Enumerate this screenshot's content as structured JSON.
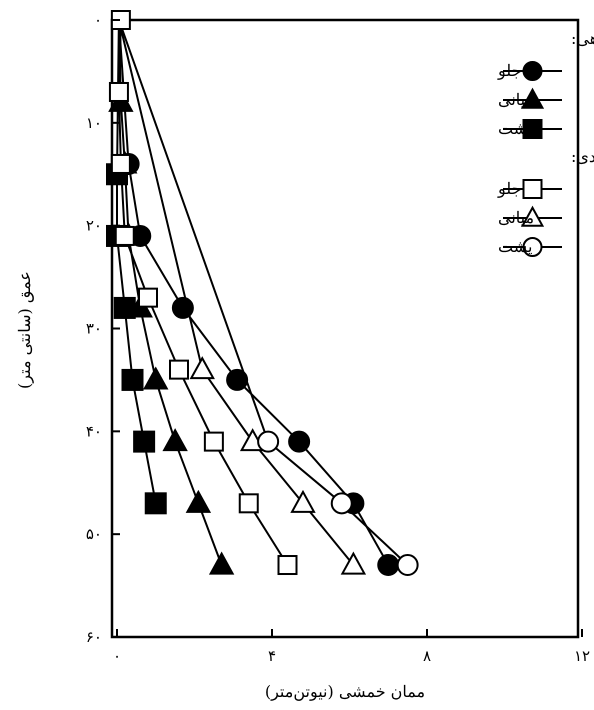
{
  "chart_data": {
    "type": "line",
    "orientation": "inverted-y",
    "xlabel": "ممان خمشی (نیوتن‌متر)",
    "ylabel": "عمق (سانتی متر)",
    "xlim": [
      0,
      12
    ],
    "ylim": [
      0,
      60
    ],
    "y_inverted": true,
    "x_ticks": [
      {
        "value": 0,
        "label": "۰"
      },
      {
        "value": 4,
        "label": "۴"
      },
      {
        "value": 8,
        "label": "۸"
      },
      {
        "value": 12,
        "label": "۱۲"
      }
    ],
    "y_ticks": [
      {
        "value": 0,
        "label": "۰"
      },
      {
        "value": 10,
        "label": "۱۰"
      },
      {
        "value": 20,
        "label": "۲۰"
      },
      {
        "value": 30,
        "label": "۳۰"
      },
      {
        "value": 40,
        "label": "۴۰"
      },
      {
        "value": 50,
        "label": "۵۰"
      },
      {
        "value": 60,
        "label": "۶۰"
      }
    ],
    "grid": false,
    "legend_position": "top-right",
    "legend_groups": [
      {
        "title": "آزمایشگاهی:",
        "series_indices": [
          0,
          1,
          2
        ]
      },
      {
        "title": "عددی:",
        "series_indices": [
          3,
          4,
          5
        ]
      }
    ],
    "series": [
      {
        "name": "جلو",
        "group": "آزمایشگاهی",
        "marker": "circle",
        "fill": "filled",
        "points": [
          [
            0.3,
            14
          ],
          [
            0.6,
            21
          ],
          [
            1.7,
            28
          ],
          [
            3.1,
            35
          ],
          [
            4.7,
            41
          ],
          [
            6.1,
            47
          ],
          [
            7.0,
            53
          ]
        ]
      },
      {
        "name": "میانی",
        "group": "آزمایشگاهی",
        "marker": "triangle",
        "fill": "filled",
        "points": [
          [
            0.1,
            8
          ],
          [
            0.2,
            14
          ],
          [
            0.3,
            21
          ],
          [
            0.6,
            28
          ],
          [
            1.0,
            35
          ],
          [
            1.5,
            41
          ],
          [
            2.1,
            47
          ],
          [
            2.7,
            53
          ]
        ]
      },
      {
        "name": "پشت",
        "group": "آزمایشگاهی",
        "marker": "square",
        "fill": "filled",
        "points": [
          [
            0.0,
            15
          ],
          [
            0.0,
            21
          ],
          [
            0.2,
            28
          ],
          [
            0.4,
            35
          ],
          [
            0.7,
            41
          ],
          [
            1.0,
            47
          ]
        ]
      },
      {
        "name": "جلو",
        "group": "عددی",
        "marker": "square",
        "fill": "open",
        "points": [
          [
            0.1,
            0
          ],
          [
            0.05,
            7
          ],
          [
            0.1,
            14
          ],
          [
            0.2,
            21
          ],
          [
            0.8,
            27
          ],
          [
            1.6,
            34
          ],
          [
            2.5,
            41
          ],
          [
            3.4,
            47
          ],
          [
            4.4,
            53
          ]
        ]
      },
      {
        "name": "میانی",
        "group": "عددی",
        "marker": "triangle",
        "fill": "open",
        "points": [
          [
            2.2,
            34
          ],
          [
            3.5,
            41
          ],
          [
            4.8,
            47
          ],
          [
            6.1,
            53
          ]
        ]
      },
      {
        "name": "پشت",
        "group": "عددی",
        "marker": "circle",
        "fill": "open",
        "points": [
          [
            3.9,
            41
          ],
          [
            5.8,
            47
          ],
          [
            7.5,
            53
          ]
        ]
      }
    ]
  }
}
